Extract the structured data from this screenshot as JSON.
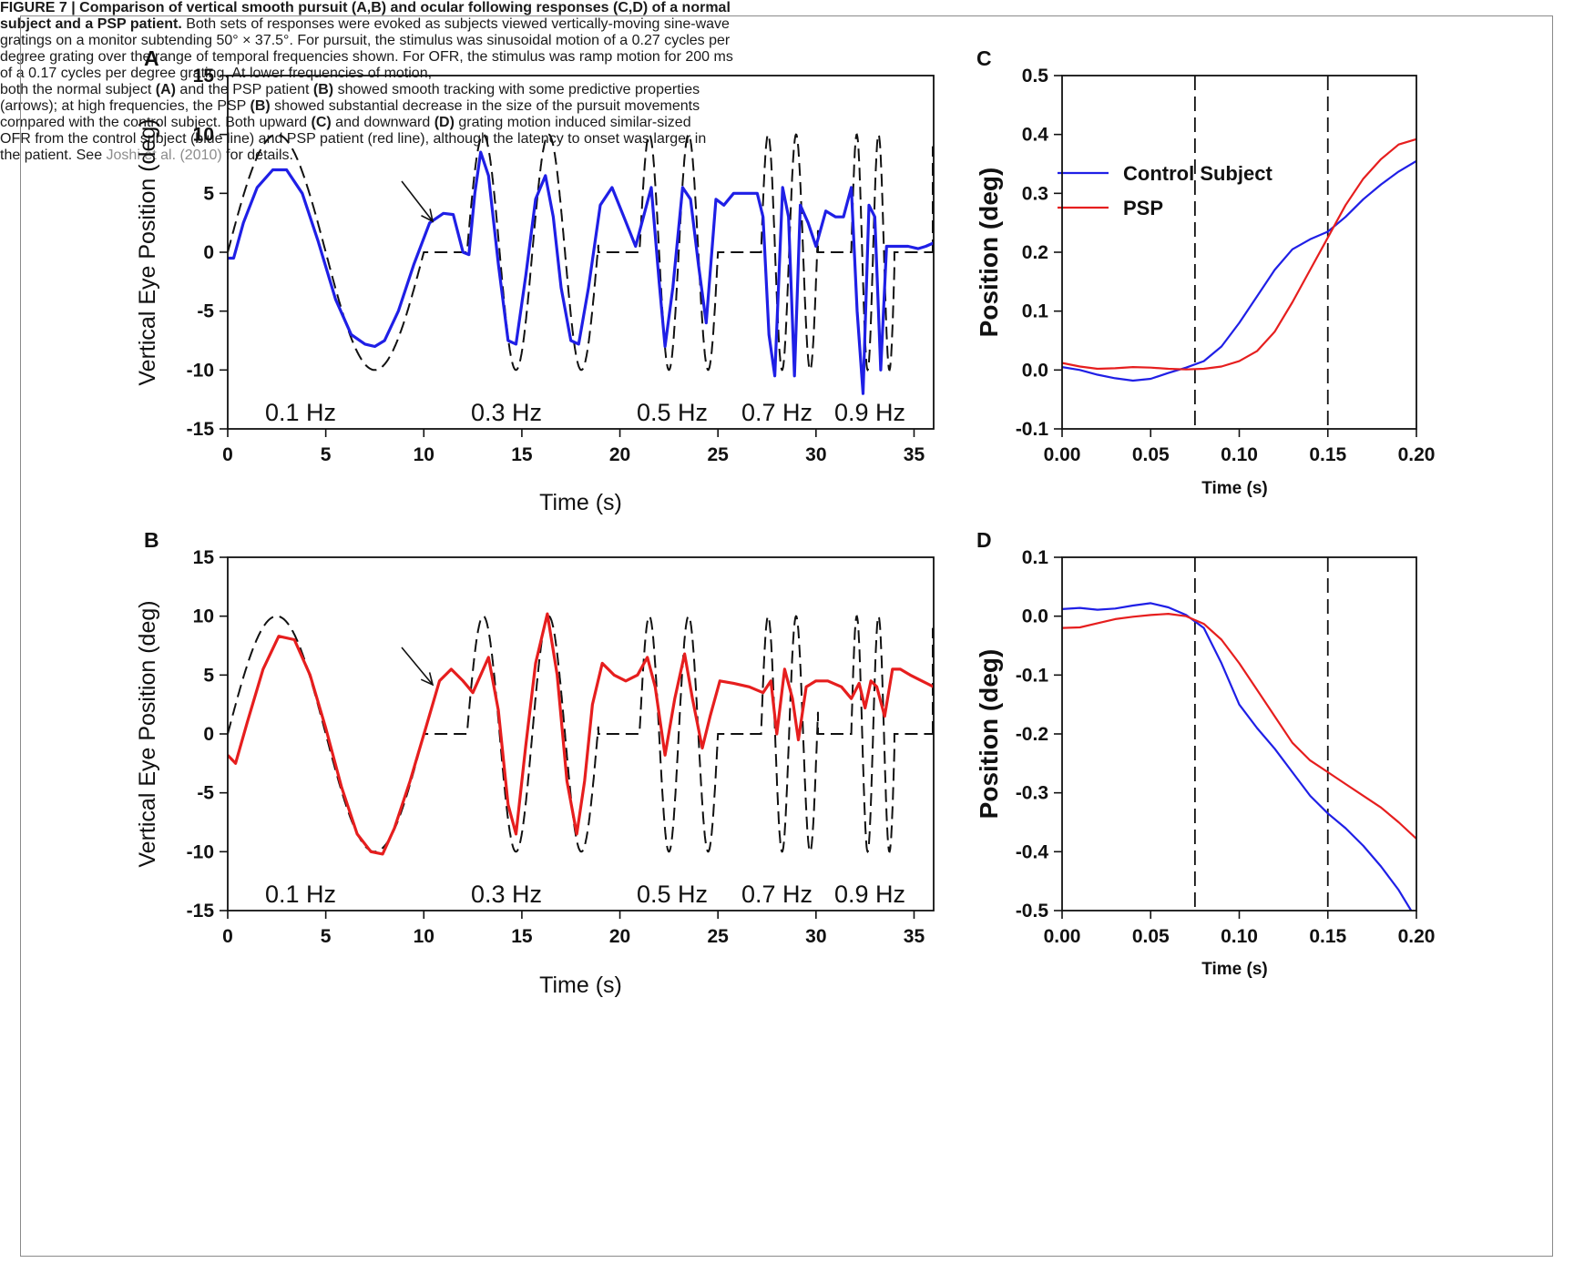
{
  "caption": {
    "figure_label": "FIGURE 7 | ",
    "title": "Comparison of vertical smooth pursuit (A,B) and ocular following responses (C,D) of a normal subject and a PSP patient.",
    "left_text": " Both sets of responses were evoked as subjects viewed vertically-moving sine-wave gratings on a monitor subtending 50° × 37.5°. For pursuit, the stimulus was sinusoidal motion of a 0.27 cycles per degree grating over the range of temporal frequencies shown. For OFR, the stimulus was ramp motion for 200 ms of a 0.17 cycles per degree grating. At lower frequencies of motion,",
    "right_1": "both the normal subject ",
    "right_A": "(A)",
    "right_2": " and the PSP patient ",
    "right_B": "(B)",
    "right_3": " showed smooth tracking with some predictive properties (arrows); at high frequencies, the PSP ",
    "right_B2": "(B)",
    "right_4": " showed substantial decrease in the size of the pursuit movements compared with the control subject. Both upward ",
    "right_C": "(C)",
    "right_5": " and downward ",
    "right_D": "(D)",
    "right_6": " grating motion induced similar-sized OFR from the control subject (blue line) and PSP patient (red line), although the latency to onset was larger in the patient. See ",
    "right_link": "Joshi et al. (2010)",
    "right_7": " for details."
  },
  "colors": {
    "control": "#1f1fe6",
    "psp": "#e61e1e",
    "stimulus": "#111111"
  },
  "chart_data": [
    {
      "panel": "A",
      "type": "line",
      "xlabel": "Time (s)",
      "ylabel": "Vertical Eye Position (deg)",
      "xlim": [
        0,
        36
      ],
      "ylim": [
        -15,
        15
      ],
      "xticks": [
        0,
        5,
        10,
        15,
        20,
        25,
        30,
        35
      ],
      "yticks": [
        15,
        10,
        5,
        0,
        -5,
        -10,
        -15
      ],
      "annotations": [
        "0.1 Hz",
        "0.3 Hz",
        "0.5 Hz",
        "0.7 Hz",
        "0.9 Hz"
      ],
      "stimulus_segments": [
        {
          "freq": 0.1,
          "start": 0,
          "end": 10,
          "amplitude": 10
        },
        {
          "freq": 0.3,
          "start": 12.2,
          "end": 18.9,
          "amplitude": 10
        },
        {
          "freq": 0.5,
          "start": 21.0,
          "end": 25.0,
          "amplitude": 10
        },
        {
          "freq": 0.7,
          "start": 27.2,
          "end": 30.1,
          "amplitude": 10
        },
        {
          "freq": 0.9,
          "start": 31.8,
          "end": 34.0,
          "amplitude": 10
        }
      ],
      "series": [
        {
          "color": "#1f1fe6",
          "x": [
            0,
            0.3,
            0.8,
            1.5,
            2.3,
            3.0,
            3.8,
            4.6,
            5.5,
            6.3,
            7.0,
            7.5,
            8.0,
            8.7,
            9.5,
            10.3,
            11.0,
            11.5,
            12.0,
            12.3,
            12.6,
            12.9,
            13.3,
            13.8,
            14.3,
            14.7,
            15.2,
            15.7,
            16.2,
            16.6,
            17.0,
            17.5,
            17.9,
            18.4,
            19.0,
            19.6,
            20.2,
            20.8,
            21.2,
            21.6,
            22.0,
            22.3,
            22.7,
            23.2,
            23.6,
            24.0,
            24.4,
            24.9,
            25.3,
            25.8,
            26.4,
            27.0,
            27.3,
            27.6,
            27.9,
            28.3,
            28.6,
            28.9,
            29.2,
            29.6,
            30.0,
            30.5,
            31.0,
            31.4,
            31.8,
            32.1,
            32.4,
            32.7,
            33.0,
            33.3,
            33.6,
            33.9,
            34.3,
            34.7,
            35.2,
            35.6,
            36.0
          ],
          "y": [
            -0.5,
            -0.5,
            2.5,
            5.5,
            7.0,
            7.0,
            5.0,
            1.0,
            -4.0,
            -7.0,
            -7.8,
            -8.0,
            -7.5,
            -5.0,
            -1.0,
            2.5,
            3.3,
            3.2,
            0.0,
            -0.2,
            5.0,
            8.5,
            6.5,
            -1.0,
            -7.5,
            -7.8,
            -2.0,
            4.5,
            6.5,
            3.0,
            -3.0,
            -7.5,
            -7.8,
            -3.0,
            4.0,
            5.5,
            3.0,
            0.5,
            3.0,
            5.5,
            -2.5,
            -8.0,
            -3.0,
            5.5,
            4.5,
            -1.0,
            -6.0,
            4.5,
            4.0,
            5.0,
            5.0,
            5.0,
            3.0,
            -7.0,
            -10.5,
            5.5,
            3.0,
            -10.5,
            4.0,
            2.5,
            0.5,
            3.5,
            3.0,
            3.0,
            5.5,
            -5.0,
            -12.0,
            4.0,
            3.0,
            -10.0,
            0.5,
            0.5,
            0.5,
            0.5,
            0.3,
            0.5,
            0.8
          ]
        }
      ]
    },
    {
      "panel": "B",
      "type": "line",
      "xlabel": "Time (s)",
      "ylabel": "Vertical Eye Position (deg)",
      "xlim": [
        0,
        36
      ],
      "ylim": [
        -15,
        15
      ],
      "xticks": [
        0,
        5,
        10,
        15,
        20,
        25,
        30,
        35
      ],
      "yticks": [
        15,
        10,
        5,
        0,
        -5,
        -10,
        -15
      ],
      "annotations": [
        "0.1 Hz",
        "0.3 Hz",
        "0.5 Hz",
        "0.7 Hz",
        "0.9 Hz"
      ],
      "stimulus_segments": [
        {
          "freq": 0.1,
          "start": 0,
          "end": 10,
          "amplitude": 10
        },
        {
          "freq": 0.3,
          "start": 12.2,
          "end": 18.9,
          "amplitude": 10
        },
        {
          "freq": 0.5,
          "start": 21.0,
          "end": 25.0,
          "amplitude": 10
        },
        {
          "freq": 0.7,
          "start": 27.2,
          "end": 30.1,
          "amplitude": 10
        },
        {
          "freq": 0.9,
          "start": 31.8,
          "end": 34.0,
          "amplitude": 10
        }
      ],
      "series": [
        {
          "color": "#e61e1e",
          "x": [
            0,
            0.4,
            1.0,
            1.8,
            2.6,
            3.4,
            4.2,
            5.0,
            5.8,
            6.6,
            7.3,
            7.9,
            8.5,
            9.3,
            10.1,
            10.8,
            11.4,
            12.0,
            12.5,
            12.9,
            13.3,
            13.8,
            14.3,
            14.7,
            15.2,
            15.7,
            16.3,
            16.8,
            17.3,
            17.8,
            18.2,
            18.6,
            19.1,
            19.7,
            20.3,
            20.9,
            21.4,
            21.8,
            22.3,
            22.8,
            23.3,
            23.7,
            24.2,
            24.6,
            25.1,
            25.8,
            26.6,
            27.3,
            27.7,
            28.0,
            28.4,
            28.8,
            29.1,
            29.5,
            30.0,
            30.6,
            31.3,
            31.8,
            32.2,
            32.5,
            32.8,
            33.1,
            33.5,
            33.9,
            34.3,
            34.8,
            35.4,
            36.0
          ],
          "y": [
            -1.8,
            -2.5,
            1.0,
            5.5,
            8.3,
            8.0,
            5.0,
            0.5,
            -4.5,
            -8.5,
            -10.0,
            -10.2,
            -8.0,
            -4.0,
            0.5,
            4.5,
            5.5,
            4.5,
            3.5,
            5.0,
            6.5,
            2.0,
            -6.0,
            -8.5,
            -1.0,
            6.0,
            10.2,
            5.0,
            -4.0,
            -8.5,
            -4.0,
            2.5,
            6.0,
            5.0,
            4.5,
            5.0,
            6.5,
            4.0,
            -1.8,
            3.0,
            6.8,
            3.0,
            -1.2,
            1.5,
            4.5,
            4.3,
            4.0,
            3.5,
            4.5,
            0.0,
            5.5,
            3.0,
            -0.5,
            4.0,
            4.5,
            4.5,
            4.0,
            3.0,
            4.3,
            2.2,
            4.5,
            4.0,
            1.5,
            5.5,
            5.5,
            5.0,
            4.5,
            4.0
          ]
        }
      ]
    },
    {
      "panel": "C",
      "type": "line",
      "xlabel": "Time (s)",
      "ylabel": "Position (deg)",
      "xlim": [
        0,
        0.2
      ],
      "ylim": [
        -0.1,
        0.5
      ],
      "xticks": [
        "0.00",
        "0.05",
        "0.10",
        "0.15",
        "0.20"
      ],
      "yticks": [
        "0.5",
        "0.4",
        "0.3",
        "0.2",
        "0.1",
        "0.0",
        "-0.1"
      ],
      "vlines": [
        0.075,
        0.15
      ],
      "legend": {
        "position": "upper-left"
      },
      "series": [
        {
          "name": "Control Subject",
          "color": "#1f1fe6",
          "x": [
            0,
            0.01,
            0.02,
            0.03,
            0.04,
            0.05,
            0.06,
            0.07,
            0.08,
            0.09,
            0.1,
            0.11,
            0.12,
            0.13,
            0.14,
            0.15,
            0.16,
            0.17,
            0.18,
            0.19,
            0.2
          ],
          "y": [
            0.005,
            0.0,
            -0.008,
            -0.014,
            -0.018,
            -0.015,
            -0.005,
            0.004,
            0.015,
            0.04,
            0.08,
            0.125,
            0.17,
            0.205,
            0.222,
            0.235,
            0.26,
            0.29,
            0.315,
            0.337,
            0.355
          ]
        },
        {
          "name": "PSP",
          "color": "#e61e1e",
          "x": [
            0,
            0.01,
            0.02,
            0.03,
            0.04,
            0.05,
            0.06,
            0.07,
            0.08,
            0.09,
            0.1,
            0.11,
            0.12,
            0.13,
            0.14,
            0.15,
            0.16,
            0.17,
            0.18,
            0.19,
            0.2
          ],
          "y": [
            0.012,
            0.006,
            0.002,
            0.003,
            0.005,
            0.004,
            0.002,
            0.001,
            0.002,
            0.006,
            0.015,
            0.032,
            0.065,
            0.115,
            0.17,
            0.225,
            0.28,
            0.325,
            0.358,
            0.383,
            0.392
          ]
        }
      ]
    },
    {
      "panel": "D",
      "type": "line",
      "xlabel": "Time (s)",
      "ylabel": "Position (deg)",
      "xlim": [
        0,
        0.2
      ],
      "ylim": [
        -0.5,
        0.1
      ],
      "xticks": [
        "0.00",
        "0.05",
        "0.10",
        "0.15",
        "0.20"
      ],
      "yticks": [
        "0.1",
        "0.0",
        "-0.1",
        "-0.2",
        "-0.3",
        "-0.4",
        "-0.5"
      ],
      "vlines": [
        0.075,
        0.15
      ],
      "series": [
        {
          "name": "Control Subject",
          "color": "#1f1fe6",
          "x": [
            0,
            0.01,
            0.02,
            0.03,
            0.04,
            0.05,
            0.06,
            0.07,
            0.08,
            0.09,
            0.1,
            0.11,
            0.12,
            0.13,
            0.14,
            0.15,
            0.16,
            0.17,
            0.18,
            0.19,
            0.197
          ],
          "y": [
            0.012,
            0.014,
            0.011,
            0.013,
            0.018,
            0.022,
            0.015,
            0.002,
            -0.02,
            -0.08,
            -0.15,
            -0.19,
            -0.225,
            -0.265,
            -0.305,
            -0.335,
            -0.36,
            -0.39,
            -0.425,
            -0.465,
            -0.5
          ]
        },
        {
          "name": "PSP",
          "color": "#e61e1e",
          "x": [
            0,
            0.01,
            0.02,
            0.03,
            0.04,
            0.05,
            0.06,
            0.07,
            0.08,
            0.09,
            0.1,
            0.11,
            0.12,
            0.13,
            0.14,
            0.15,
            0.16,
            0.17,
            0.18,
            0.19,
            0.2
          ],
          "y": [
            -0.02,
            -0.019,
            -0.012,
            -0.005,
            -0.001,
            0.002,
            0.004,
            0.0,
            -0.013,
            -0.04,
            -0.08,
            -0.125,
            -0.17,
            -0.215,
            -0.245,
            -0.265,
            -0.285,
            -0.305,
            -0.325,
            -0.35,
            -0.378
          ]
        }
      ]
    }
  ]
}
